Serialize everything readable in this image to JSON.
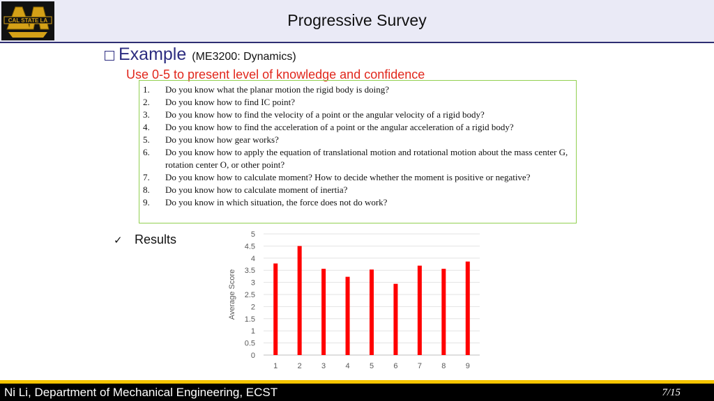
{
  "header": {
    "title": "Progressive Survey",
    "logo_text": "CAL STATE LA"
  },
  "example": {
    "heading": "Example",
    "course": "(ME3200: Dynamics)",
    "instruction": "Use 0-5 to present level of knowledge and confidence"
  },
  "questions": [
    {
      "num": "1.",
      "text": "Do you know what the planar motion the rigid body is doing?"
    },
    {
      "num": "2.",
      "text": "Do you know how to find IC point?"
    },
    {
      "num": "3.",
      "text": "Do you know how to find the velocity of a point or the angular velocity of a rigid body?"
    },
    {
      "num": "4.",
      "text": "Do you know how to find the acceleration of a point or the angular acceleration of a rigid body?"
    },
    {
      "num": "5.",
      "text": "Do you know how gear works?"
    },
    {
      "num": "6.",
      "text": "Do you know how to apply the equation of translational motion and rotational motion about the mass center G, rotation center O, or other point?"
    },
    {
      "num": "7.",
      "text": "Do you know how to calculate moment? How to decide whether the moment is positive or negative?"
    },
    {
      "num": "8.",
      "text": "Do you know how to calculate moment of inertia?"
    },
    {
      "num": "9.",
      "text": "Do you know in which situation, the force does not do work?"
    }
  ],
  "results": {
    "label": "Results",
    "icon": "checkmark-icon"
  },
  "chart_data": {
    "type": "bar",
    "categories": [
      "1",
      "2",
      "3",
      "4",
      "5",
      "6",
      "7",
      "8",
      "9"
    ],
    "values": [
      3.78,
      4.5,
      3.56,
      3.23,
      3.53,
      2.94,
      3.69,
      3.56,
      3.86
    ],
    "title": "",
    "xlabel": "",
    "ylabel": "Average Score",
    "ylim": [
      0,
      5
    ],
    "yticks": [
      "0",
      "0.5",
      "1",
      "1.5",
      "2",
      "2.5",
      "3",
      "3.5",
      "4",
      "4.5",
      "5"
    ],
    "grid": true,
    "bar_color": "#ff0000"
  },
  "footer": {
    "text": "Ni Li, Department of Mechanical Engineering, ECST",
    "page": "7/15"
  },
  "colors": {
    "header_bg": "#eaeaf6",
    "accent_blue": "#2d2d80",
    "instruction_red": "#e1271c",
    "box_border": "#92d050",
    "footer_bg": "#000000",
    "footer_stripe": "#f5c400"
  }
}
